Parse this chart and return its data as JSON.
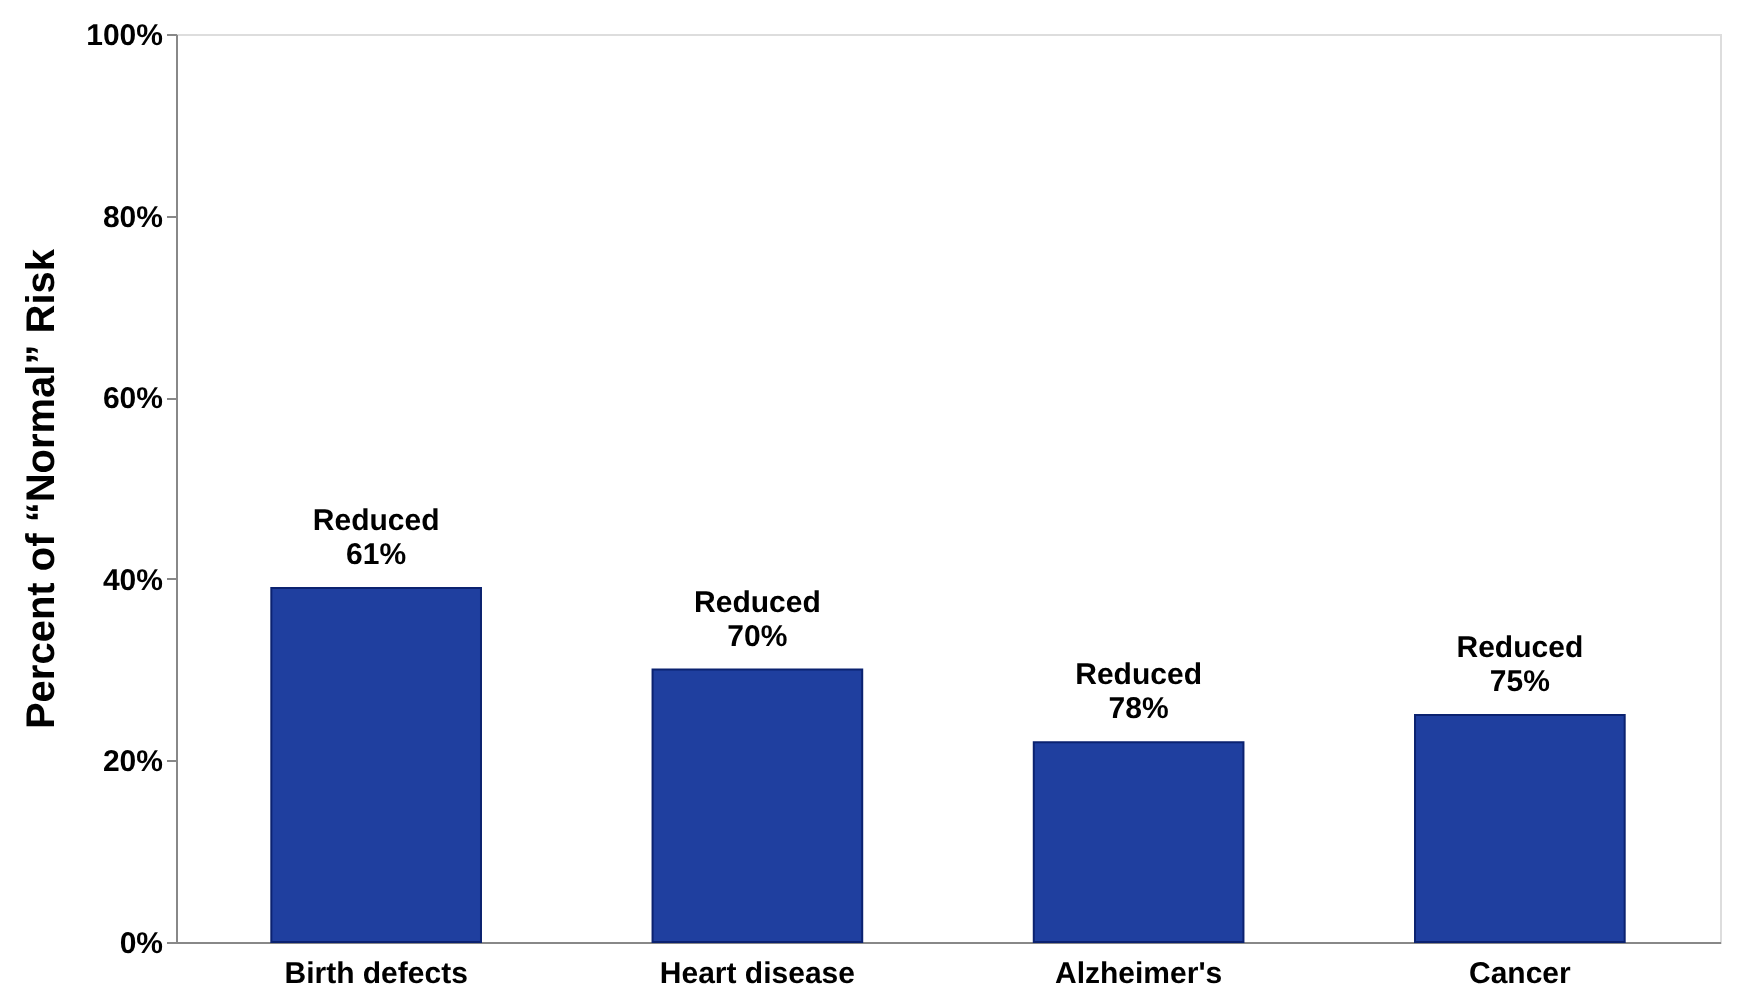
{
  "chart_data": {
    "type": "bar",
    "ylabel": "Percent of “Normal” Risk",
    "categories": [
      "Birth defects",
      "Heart disease",
      "Alzheimer's",
      "Cancer"
    ],
    "values": [
      39,
      30,
      22,
      25
    ],
    "color": "#1f3f9f",
    "value_labels": [
      "Reduced\n61%",
      "Reduced\n70%",
      "Reduced\n78%",
      "Reduced\n75%"
    ],
    "ylim": [
      0,
      100
    ],
    "yticks": [
      {
        "value": 0,
        "label": "0%"
      },
      {
        "value": 20,
        "label": "20%"
      },
      {
        "value": 40,
        "label": "40%"
      },
      {
        "value": 60,
        "label": "60%"
      },
      {
        "value": 80,
        "label": "80%"
      },
      {
        "value": 100,
        "label": "100%"
      }
    ],
    "grid": false
  }
}
